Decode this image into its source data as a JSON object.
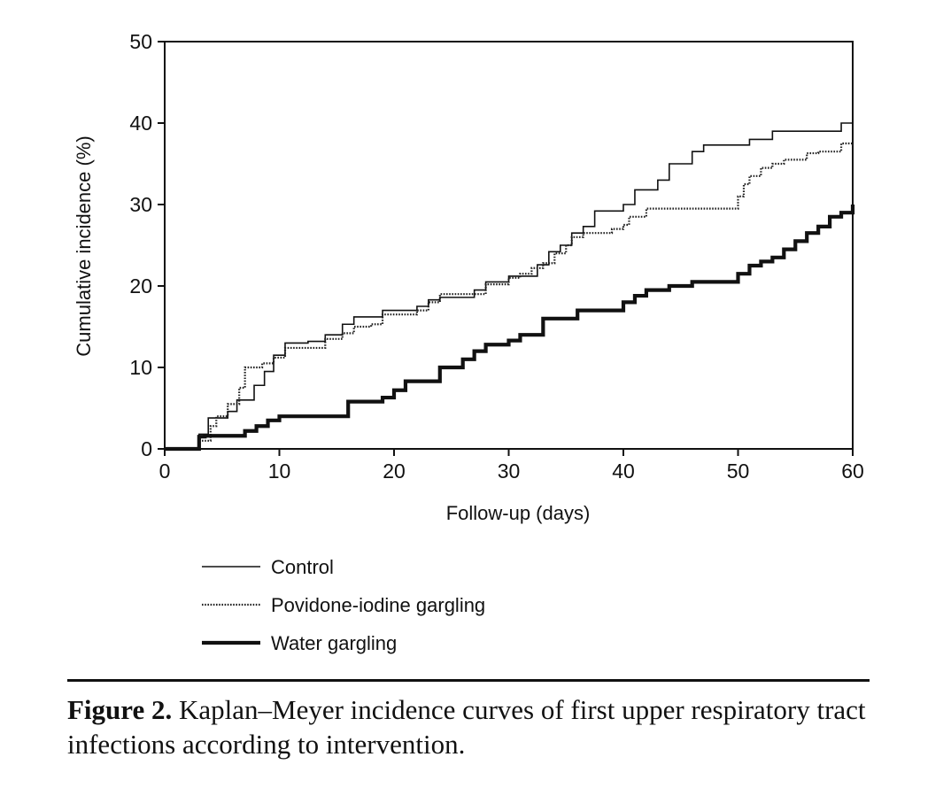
{
  "chart_data": {
    "type": "line",
    "step": true,
    "xlabel": "Follow-up (days)",
    "ylabel": "Cumulative incidence (%)",
    "xlim": [
      0,
      60
    ],
    "ylim": [
      0,
      50
    ],
    "xticks": [
      0,
      10,
      20,
      30,
      40,
      50,
      60
    ],
    "yticks": [
      0,
      10,
      20,
      30,
      40,
      50
    ],
    "grid": false,
    "legend_position": "bottom-left",
    "series": [
      {
        "name": "Control",
        "style": "thin-solid",
        "x": [
          0,
          3,
          3.8,
          4.5,
          5.5,
          6.3,
          7,
          7.8,
          8.7,
          9.5,
          10.5,
          12.5,
          14,
          15.5,
          16.5,
          17.5,
          19,
          21,
          22,
          23,
          24,
          27,
          28,
          30,
          31,
          32.5,
          33.5,
          34.5,
          35.5,
          36.5,
          37.5,
          38.5,
          40,
          41,
          42,
          43,
          44,
          45,
          46,
          47,
          49,
          51,
          53,
          59,
          60
        ],
        "y": [
          0,
          1.8,
          3.8,
          3.8,
          4.6,
          6.0,
          6.0,
          7.8,
          9.5,
          11.5,
          13.0,
          13.2,
          14.0,
          15.3,
          16.2,
          16.2,
          17.0,
          17.0,
          17.5,
          18.3,
          18.6,
          19.5,
          20.5,
          21.2,
          21.2,
          22.6,
          24.2,
          25.0,
          26.5,
          27.3,
          29.2,
          29.2,
          30.0,
          31.8,
          31.8,
          33.0,
          35.0,
          35.0,
          36.5,
          37.3,
          37.3,
          38.0,
          39.0,
          40.0,
          40.8
        ]
      },
      {
        "name": "Povidone-iodine gargling",
        "style": "dotted",
        "x": [
          0,
          3,
          4,
          4.5,
          5.5,
          6.5,
          7,
          8.5,
          9.5,
          10.5,
          12.5,
          14,
          15.5,
          16.5,
          18,
          19,
          21,
          22,
          23,
          24,
          27,
          28,
          29,
          30,
          31,
          32,
          33,
          34,
          35,
          35.5,
          36.5,
          37.5,
          39,
          40,
          40.5,
          41.5,
          42,
          43,
          50,
          50.5,
          51,
          51.5,
          52,
          53,
          54,
          55,
          56,
          57,
          59,
          60
        ],
        "y": [
          0,
          1.0,
          2.8,
          4.0,
          5.5,
          7.5,
          10.0,
          10.5,
          11.2,
          12.4,
          12.4,
          13.5,
          14.2,
          15.0,
          15.3,
          16.5,
          16.5,
          17.0,
          18.0,
          19.0,
          19.0,
          20.2,
          20.2,
          21.0,
          21.5,
          22.2,
          22.8,
          24.0,
          25.0,
          26.0,
          26.5,
          26.5,
          27.0,
          27.5,
          28.5,
          28.5,
          29.5,
          29.5,
          31.0,
          32.5,
          33.5,
          33.5,
          34.5,
          35.0,
          35.5,
          35.5,
          36.3,
          36.5,
          37.5,
          37.0
        ]
      },
      {
        "name": "Water gargling",
        "style": "thick-solid",
        "x": [
          0,
          3,
          3.5,
          4,
          5.5,
          7,
          8,
          9,
          10,
          15,
          16,
          17,
          19,
          20,
          21,
          23,
          24,
          25,
          26,
          27,
          28,
          29,
          30,
          31,
          32,
          33,
          35,
          36,
          37,
          40,
          41,
          42,
          44,
          46,
          48,
          50,
          51,
          52,
          53,
          54,
          55,
          56,
          57,
          58,
          59,
          60
        ],
        "y": [
          0,
          1.5,
          1.6,
          1.6,
          1.6,
          2.2,
          2.8,
          3.5,
          4.0,
          4.0,
          5.8,
          5.8,
          6.3,
          7.2,
          8.3,
          8.3,
          10.0,
          10.0,
          11.0,
          12.0,
          12.8,
          12.8,
          13.3,
          14.0,
          14.0,
          16.0,
          16.0,
          17.0,
          17.0,
          18.0,
          18.8,
          19.5,
          20.0,
          20.5,
          20.5,
          21.5,
          22.5,
          23.0,
          23.5,
          24.5,
          25.5,
          26.5,
          27.3,
          28.5,
          29.0,
          30.0
        ]
      }
    ]
  },
  "caption": {
    "label": "Figure 2.",
    "text": "Kaplan–Meyer incidence curves of first upper respiratory tract infections according to intervention."
  }
}
